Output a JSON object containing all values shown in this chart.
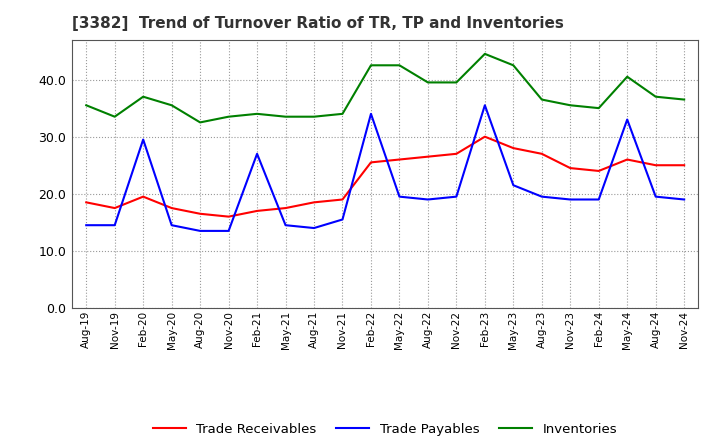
{
  "title": "[3382]  Trend of Turnover Ratio of TR, TP and Inventories",
  "x_labels": [
    "Aug-19",
    "Nov-19",
    "Feb-20",
    "May-20",
    "Aug-20",
    "Nov-20",
    "Feb-21",
    "May-21",
    "Aug-21",
    "Nov-21",
    "Feb-22",
    "May-22",
    "Aug-22",
    "Nov-22",
    "Feb-23",
    "May-23",
    "Aug-23",
    "Nov-23",
    "Feb-24",
    "May-24",
    "Aug-24",
    "Nov-24"
  ],
  "trade_receivables": [
    18.5,
    17.5,
    19.5,
    17.5,
    16.5,
    16.0,
    17.0,
    17.5,
    18.5,
    19.0,
    25.5,
    26.0,
    26.5,
    27.0,
    30.0,
    28.0,
    27.0,
    24.5,
    24.0,
    26.0,
    25.0,
    25.0
  ],
  "trade_payables": [
    14.5,
    14.5,
    29.5,
    14.5,
    13.5,
    13.5,
    27.0,
    14.5,
    14.0,
    15.5,
    34.0,
    19.5,
    19.0,
    19.5,
    35.5,
    21.5,
    19.5,
    19.0,
    19.0,
    33.0,
    19.5,
    19.0
  ],
  "inventories": [
    35.5,
    33.5,
    37.0,
    35.5,
    32.5,
    33.5,
    34.0,
    33.5,
    33.5,
    34.0,
    42.5,
    42.5,
    39.5,
    39.5,
    44.5,
    42.5,
    36.5,
    35.5,
    35.0,
    40.5,
    37.0,
    36.5
  ],
  "ylim": [
    0,
    47
  ],
  "yticks": [
    0.0,
    10.0,
    20.0,
    30.0,
    40.0
  ],
  "tr_color": "#ff0000",
  "tp_color": "#0000ff",
  "inv_color": "#008000",
  "bg_color": "#ffffff",
  "grid_color": "#999999",
  "legend_labels": [
    "Trade Receivables",
    "Trade Payables",
    "Inventories"
  ]
}
